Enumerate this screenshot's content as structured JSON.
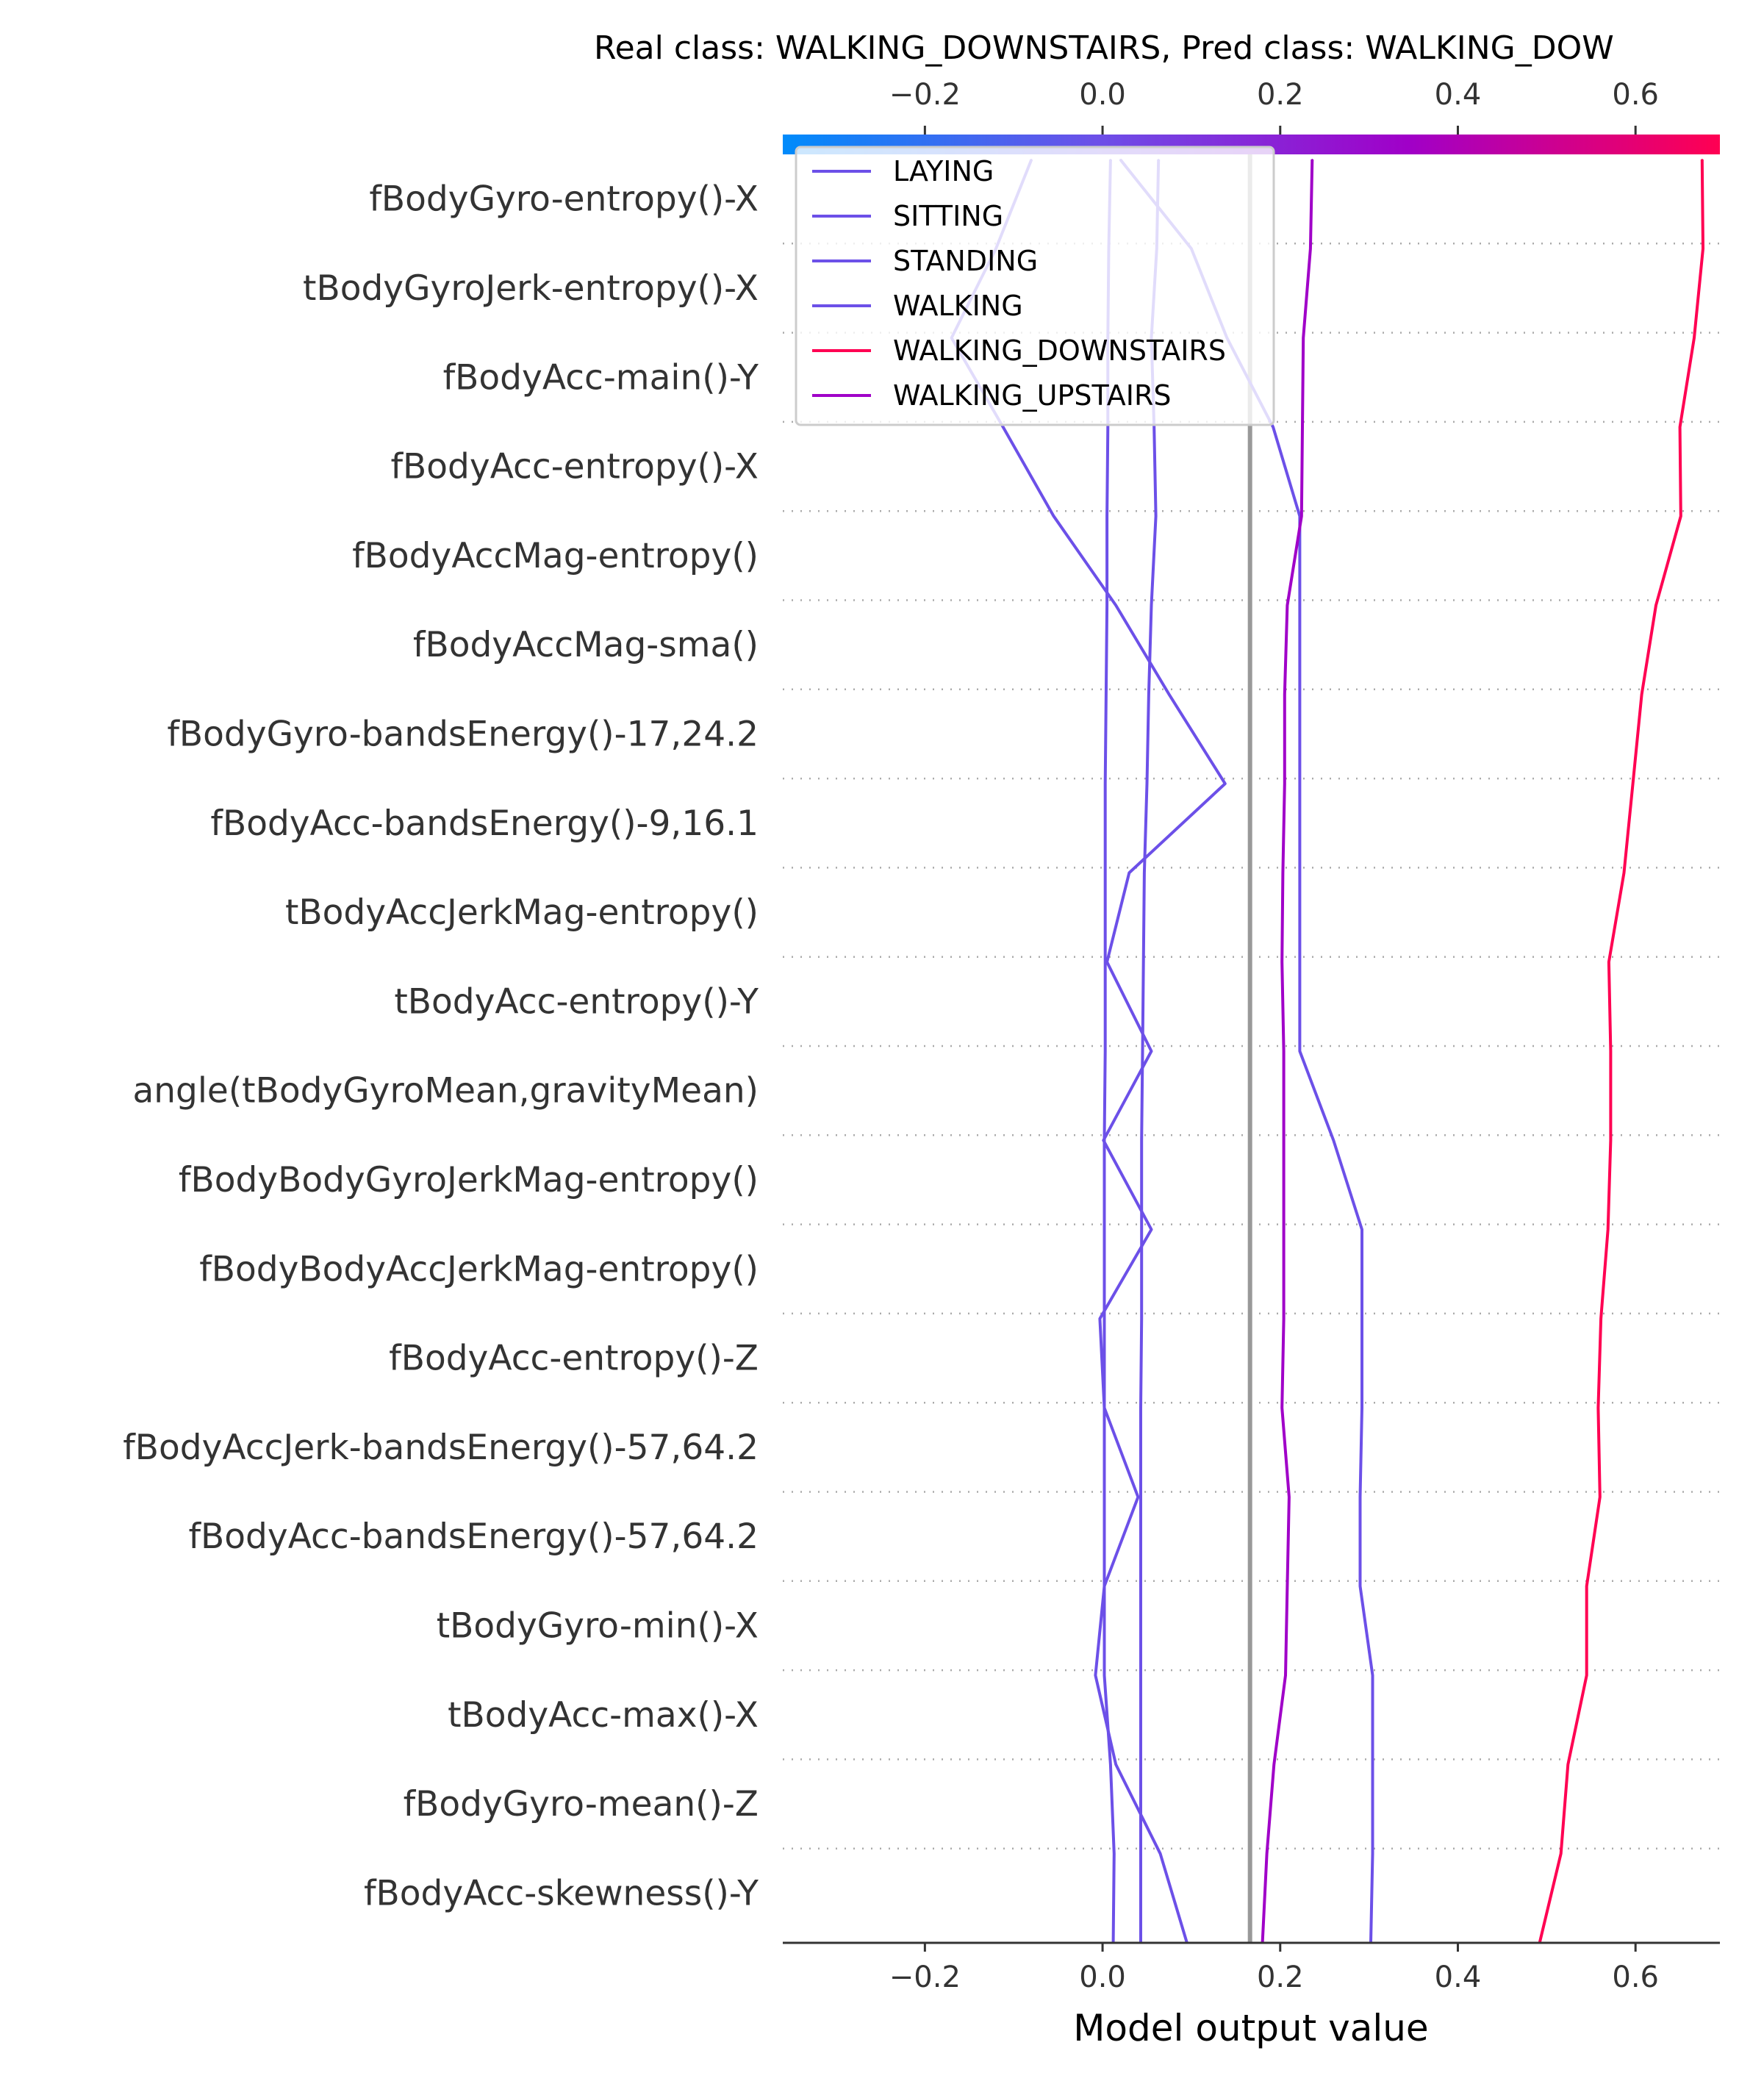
{
  "chart_data": {
    "type": "line",
    "title": "Real class: WALKING_DOWNSTAIRS, Pred class: WALKING_DOW",
    "xlabel": "Model output value",
    "ylabel": "",
    "xlim": [
      -0.36,
      0.695
    ],
    "xticks": [
      -0.2,
      0.0,
      0.2,
      0.4,
      0.6
    ],
    "xtick_labels": [
      "−0.2",
      "0.0",
      "0.2",
      "0.4",
      "0.6"
    ],
    "base_value": 0.166,
    "grid": "dotted horizontal lines between features",
    "legend_position": "top-left",
    "colorbar": {
      "min": -0.36,
      "max": 0.695,
      "colors": [
        "#008bfb",
        "#6c50e8",
        "#a000c8",
        "#ff0052"
      ]
    },
    "features": [
      "fBodyGyro-entropy()-X",
      "tBodyGyroJerk-entropy()-X",
      "fBodyAcc-main()-Y",
      "fBodyAcc-entropy()-X",
      "fBodyAccMag-entropy()",
      "fBodyAccMag-sma()",
      "fBodyGyro-bandsEnergy()-17,24.2",
      "fBodyAcc-bandsEnergy()-9,16.1",
      "tBodyAccJerkMag-entropy()",
      "tBodyAcc-entropy()-Y",
      "angle(tBodyGyroMean,gravityMean)",
      "fBodyBodyGyroJerkMag-entropy()",
      "fBodyBodyAccJerkMag-entropy()",
      "fBodyAcc-entropy()-Z",
      "fBodyAccJerk-bandsEnergy()-57,64.2",
      "fBodyAcc-bandsEnergy()-57,64.2",
      "tBodyGyro-min()-X",
      "tBodyAcc-max()-X",
      "fBodyGyro-mean()-Z",
      "fBodyAcc-skewness()-Y"
    ],
    "series": [
      {
        "name": "LAYING",
        "color": "#6c50e8",
        "values": [
          0.012,
          0.013,
          0.009,
          0.002,
          0.002,
          0.002,
          0.002,
          0.002,
          0.002,
          0.002,
          0.003,
          0.003,
          0.003,
          0.003,
          0.004,
          0.005,
          0.005,
          0.006,
          0.006,
          0.007,
          0.009
        ]
      },
      {
        "name": "SITTING",
        "color": "#6c50e8",
        "values": [
          0.043,
          0.043,
          0.043,
          0.043,
          0.043,
          0.043,
          0.043,
          0.044,
          0.044,
          0.044,
          0.045,
          0.046,
          0.047,
          0.05,
          0.052,
          0.055,
          0.06,
          0.058,
          0.055,
          0.061,
          0.063
        ]
      },
      {
        "name": "STANDING",
        "color": "#6c50e8",
        "values": [
          0.095,
          0.065,
          0.015,
          -0.008,
          0.002,
          0.04,
          0.002,
          -0.003,
          0.055,
          0.001,
          0.055,
          0.005,
          0.03,
          0.138,
          0.075,
          0.015,
          -0.055,
          -0.112,
          -0.17,
          -0.12,
          -0.08
        ]
      },
      {
        "name": "WALKING",
        "color": "#6c50e8",
        "values": [
          0.302,
          0.304,
          0.304,
          0.304,
          0.29,
          0.29,
          0.292,
          0.292,
          0.292,
          0.26,
          0.222,
          0.222,
          0.222,
          0.222,
          0.222,
          0.222,
          0.222,
          0.192,
          0.14,
          0.1,
          0.02
        ]
      },
      {
        "name": "WALKING_DOWNSTAIRS",
        "color": "#ff0052",
        "values": [
          0.492,
          0.516,
          0.524,
          0.545,
          0.545,
          0.56,
          0.558,
          0.561,
          0.569,
          0.572,
          0.572,
          0.57,
          0.587,
          0.597,
          0.607,
          0.623,
          0.651,
          0.65,
          0.666,
          0.676,
          0.675
        ]
      },
      {
        "name": "WALKING_UPSTAIRS",
        "color": "#a000c8",
        "values": [
          0.18,
          0.185,
          0.193,
          0.206,
          0.208,
          0.21,
          0.202,
          0.204,
          0.204,
          0.204,
          0.204,
          0.202,
          0.203,
          0.205,
          0.205,
          0.208,
          0.224,
          0.225,
          0.226,
          0.234,
          0.236
        ]
      }
    ]
  }
}
